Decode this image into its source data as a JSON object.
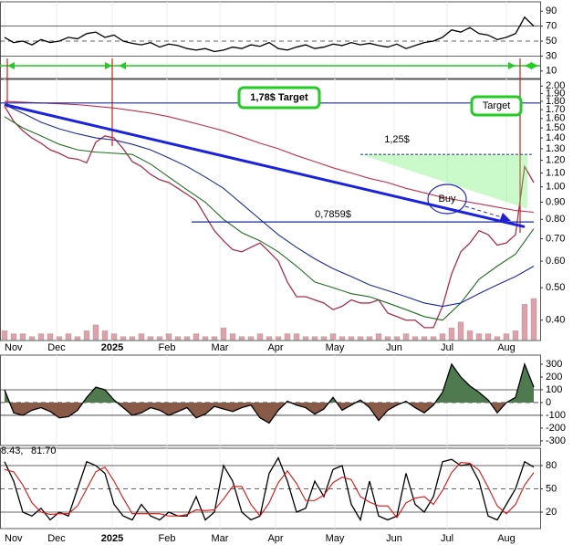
{
  "chart_data": [
    {
      "type": "line",
      "ylim": [
        0,
        100
      ],
      "yticks": [
        90,
        70,
        50,
        30,
        10
      ],
      "levels": [
        {
          "value": 70,
          "dashed": false
        },
        {
          "value": 50,
          "dashed": true
        },
        {
          "value": 30,
          "dashed": false
        }
      ],
      "series": [
        {
          "color": "#000000",
          "values": [
            55,
            48,
            50,
            45,
            52,
            48,
            50,
            55,
            53,
            60,
            62,
            55,
            58,
            50,
            47,
            45,
            48,
            42,
            46,
            44,
            40,
            38,
            40,
            36,
            38,
            42,
            40,
            45,
            43,
            48,
            40,
            38,
            42,
            45,
            40,
            42,
            46,
            44,
            48,
            45,
            47,
            44,
            42,
            46,
            40,
            44,
            48,
            50,
            55,
            65,
            62,
            68,
            60,
            58,
            52,
            55,
            60,
            82,
            70
          ]
        }
      ]
    },
    {
      "type": "line",
      "log_scale": true,
      "ylim": [
        0.35,
        2.08
      ],
      "yticks": [
        {
          "value": 2.0,
          "label": "2.00"
        },
        {
          "value": 1.9,
          "label": "1.90"
        },
        {
          "value": 1.8,
          "label": "1.80"
        },
        {
          "value": 1.7,
          "label": "1.70"
        },
        {
          "value": 1.6,
          "label": "1.60"
        },
        {
          "value": 1.5,
          "label": "1.50"
        },
        {
          "value": 1.4,
          "label": "1.40"
        },
        {
          "value": 1.3,
          "label": "1.30"
        },
        {
          "value": 1.2,
          "label": "1.20"
        },
        {
          "value": 1.1,
          "label": "1.10"
        },
        {
          "value": 1.0,
          "label": "1.00"
        },
        {
          "value": 0.9,
          "label": "0.90"
        },
        {
          "value": 0.8,
          "label": "0.80"
        },
        {
          "value": 0.7,
          "label": "0.70"
        },
        {
          "value": 0.6,
          "label": "0.60"
        },
        {
          "value": 0.5,
          "label": "0.50"
        },
        {
          "value": 0.4,
          "label": "0.40"
        }
      ],
      "months": [
        "Nov",
        "Dec",
        "2025",
        "Feb",
        "Mar",
        "Apr",
        "May",
        "Jun",
        "Jul",
        "Aug"
      ],
      "series": [
        {
          "color": "#a8304a",
          "values": [
            1.74,
            1.57,
            1.47,
            1.4,
            1.35,
            1.29,
            1.26,
            1.22,
            1.21,
            1.18,
            1.36,
            1.42,
            1.4,
            1.3,
            1.19,
            1.15,
            1.09,
            1.05,
            1.03,
            0.99,
            0.95,
            0.91,
            0.82,
            0.74,
            0.69,
            0.65,
            0.64,
            0.66,
            0.68,
            0.64,
            0.6,
            0.52,
            0.47,
            0.47,
            0.46,
            0.45,
            0.43,
            0.44,
            0.46,
            0.45,
            0.45,
            0.46,
            0.42,
            0.41,
            0.4,
            0.4,
            0.38,
            0.38,
            0.44,
            0.55,
            0.64,
            0.68,
            0.74,
            0.72,
            0.67,
            0.68,
            0.72,
            1.15,
            1.03
          ]
        },
        {
          "color": "#1f6f1f",
          "values": [
            1.62,
            1.5,
            1.42,
            1.34,
            1.29,
            1.27,
            1.26,
            1.25,
            1.17,
            1.07,
            0.98,
            0.9,
            0.8,
            0.73,
            0.69,
            0.64,
            0.58,
            0.52,
            0.5,
            0.48,
            0.47,
            0.45,
            0.43,
            0.41,
            0.4,
            0.45,
            0.53,
            0.58,
            0.63,
            0.75
          ]
        },
        {
          "color": "#1a2a9a",
          "values": [
            1.76,
            1.66,
            1.56,
            1.49,
            1.44,
            1.4,
            1.38,
            1.34,
            1.29,
            1.22,
            1.15,
            1.07,
            0.99,
            0.89,
            0.8,
            0.72,
            0.66,
            0.61,
            0.57,
            0.54,
            0.51,
            0.49,
            0.47,
            0.45,
            0.44,
            0.45,
            0.48,
            0.51,
            0.54,
            0.58
          ]
        },
        {
          "color": "#c0304a",
          "values": [
            1.8,
            1.79,
            1.78,
            1.77,
            1.76,
            1.74,
            1.72,
            1.69,
            1.66,
            1.62,
            1.57,
            1.52,
            1.47,
            1.41,
            1.35,
            1.3,
            1.24,
            1.19,
            1.14,
            1.1,
            1.06,
            1.03,
            0.99,
            0.96,
            0.93,
            0.91,
            0.89,
            0.87,
            0.85,
            0.84
          ]
        }
      ],
      "volume": {
        "color": "#e0a0aa",
        "values": [
          3,
          2,
          2,
          1,
          2,
          2,
          1,
          2,
          1,
          3,
          5,
          3,
          2,
          1,
          1,
          2,
          1,
          1,
          2,
          1,
          1,
          2,
          1,
          1,
          4,
          2,
          1,
          1,
          2,
          1,
          1,
          2,
          2,
          1,
          1,
          1,
          2,
          1,
          1,
          1,
          1,
          2,
          1,
          1,
          2,
          1,
          1,
          1,
          2,
          4,
          6,
          3,
          2,
          2,
          1,
          2,
          3,
          12,
          14
        ]
      },
      "target_line": {
        "value": 1.78,
        "label": "1,78$ Target"
      },
      "target_box": "Target",
      "level_high": {
        "value": 1.25,
        "label": "1,25$"
      },
      "level_low": {
        "value": 0.7859,
        "label": "0,7859$"
      },
      "buy": "Buy",
      "trendline": [
        1.76,
        0.76
      ]
    },
    {
      "type": "line",
      "ylim": [
        -329,
        357
      ],
      "yticks": [
        300,
        200,
        100,
        0,
        -100,
        -200,
        -300
      ],
      "levels": [
        {
          "value": 100,
          "dashed": false
        },
        {
          "value": 0,
          "dashed": true
        },
        {
          "value": -100,
          "dashed": false
        }
      ],
      "fill_up": "#4f7a4f",
      "fill_down": "#8a5a48",
      "series": [
        {
          "color": "#000000",
          "values": [
            100,
            -80,
            -100,
            -60,
            -40,
            -70,
            -120,
            -110,
            -60,
            40,
            120,
            100,
            20,
            -40,
            -100,
            -80,
            -40,
            -60,
            -100,
            -70,
            -40,
            -120,
            -90,
            -30,
            -50,
            -70,
            -40,
            -20,
            -120,
            -160,
            -60,
            10,
            -20,
            -40,
            -90,
            -50,
            40,
            -60,
            -20,
            20,
            -40,
            -140,
            -60,
            -20,
            10,
            -40,
            -80,
            -20,
            80,
            300,
            200,
            130,
            80,
            20,
            -80,
            0,
            40,
            300,
            120
          ]
        }
      ]
    },
    {
      "type": "line",
      "ylim": [
        0,
        100
      ],
      "yticks": [
        80,
        50,
        20
      ],
      "levels": [
        {
          "value": 80,
          "dashed": false
        },
        {
          "value": 50,
          "dashed": true
        },
        {
          "value": 20,
          "dashed": false
        }
      ],
      "k_text": "8.43,",
      "d_text": "81.70",
      "series": [
        {
          "color": "#000000",
          "values": [
            85,
            60,
            20,
            15,
            25,
            10,
            20,
            15,
            50,
            85,
            80,
            70,
            30,
            15,
            10,
            30,
            15,
            10,
            20,
            15,
            15,
            40,
            10,
            20,
            80,
            60,
            20,
            10,
            15,
            70,
            90,
            60,
            20,
            25,
            60,
            40,
            75,
            80,
            30,
            10,
            60,
            15,
            10,
            15,
            70,
            30,
            20,
            40,
            85,
            88,
            80,
            82,
            60,
            15,
            10,
            30,
            50,
            85,
            78
          ]
        },
        {
          "color": "#e01010",
          "values": [
            75,
            72,
            55,
            32,
            20,
            17,
            18,
            18,
            28,
            50,
            72,
            78,
            60,
            38,
            18,
            18,
            18,
            18,
            15,
            15,
            17,
            23,
            22,
            23,
            37,
            53,
            53,
            30,
            15,
            32,
            58,
            73,
            57,
            35,
            35,
            42,
            58,
            65,
            62,
            40,
            33,
            28,
            28,
            13,
            32,
            38,
            40,
            30,
            48,
            71,
            84,
            83,
            74,
            52,
            28,
            18,
            30,
            55,
            71
          ]
        }
      ]
    }
  ]
}
